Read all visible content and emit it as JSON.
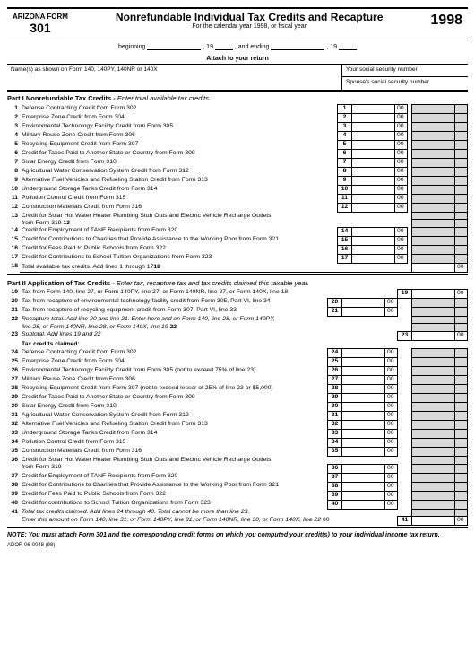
{
  "header": {
    "state": "ARIZONA FORM",
    "form_number": "301",
    "title": "Nonrefundable Individual Tax Credits and Recapture",
    "subtitle": "For the calendar year 1998, or fiscal year",
    "year": "1998",
    "beginning": "beginning",
    "ending": ", and ending",
    "comma19a": ", 19",
    "comma19b": ", 19",
    "attach": "Attach to your return"
  },
  "name_block": {
    "names_label": "Name(s) as shown on Form 140, 140PY, 140NR or 140X",
    "ssn_label": "Your social security number",
    "spouse_ssn_label": "Spouse's social security number"
  },
  "part1": {
    "heading_b": "Part I   Nonrefundable Tax Credits -",
    "heading_i": "Enter total available tax credits.",
    "lines": [
      {
        "n": "1",
        "d": "Defense Contracting Credit from Form 302",
        "b": "1"
      },
      {
        "n": "2",
        "d": "Enterprise Zone Credit from Form 304",
        "b": "2"
      },
      {
        "n": "3",
        "d": "Environmental Technology Facility Credit from Form 305",
        "b": "3"
      },
      {
        "n": "4",
        "d": "Military Reuse Zone Credit from Form 306",
        "b": "4"
      },
      {
        "n": "5",
        "d": "Recycling Equipment Credit from Form 307",
        "b": "5"
      },
      {
        "n": "6",
        "d": "Credit for Taxes Paid to Another State or Country from Form 309",
        "b": "6"
      },
      {
        "n": "7",
        "d": "Solar Energy Credit from Form 310",
        "b": "7"
      },
      {
        "n": "8",
        "d": "Agricultural Water Conservation System Credit from Form 312",
        "b": "8"
      },
      {
        "n": "9",
        "d": "Alternative Fuel Vehicles and Refueling Station Credit from Form 313",
        "b": "9"
      },
      {
        "n": "10",
        "d": "Underground Storage Tanks Credit from Form 314",
        "b": "10"
      },
      {
        "n": "11",
        "d": "Pollution Control Credit from Form 315",
        "b": "11"
      },
      {
        "n": "12",
        "d": "Construction Materials Credit from Form 316",
        "b": "12"
      }
    ],
    "line13a": {
      "n": "13",
      "d": "Credit for Solar Hot Water Heater Plumbing Stub Outs and Electric Vehicle Recharge Outlets"
    },
    "line13b": {
      "d": "from Form 319",
      "t": "13"
    },
    "lines2": [
      {
        "n": "14",
        "d": "Credit for Employment of TANF Recipients from Form 320",
        "b": "14"
      },
      {
        "n": "15",
        "d": "Credit for Contributions to Charities that Provide Assistance to the Working Poor from Form 321",
        "b": "15"
      },
      {
        "n": "16",
        "d": "Credit for Fees Paid to Public Schools from Form 322",
        "b": "16"
      },
      {
        "n": "17",
        "d": "Credit for Contributions to School Tuition Organizations from Form 323",
        "b": "17"
      }
    ],
    "line18": {
      "n": "18",
      "d": "Total available tax credits. Add lines 1 through 17",
      "t": "18"
    }
  },
  "part2": {
    "heading_b": "Part II   Application of Tax Credits -",
    "heading_i": "Enter tax, recapture tax and tax credits claimed this taxable year.",
    "line19": {
      "n": "19",
      "d": "Tax from Form 140, line 27, or Form 140PY, line 27, or Form 140NR, line 27, or Form 140X, line 18",
      "b": "19"
    },
    "line20": {
      "n": "20",
      "d": "Tax from recapture of environmental technology facility credit from Form 305, Part VI, line 34",
      "b": "20"
    },
    "line21": {
      "n": "21",
      "d": "Tax from recapture of recycling equipment credit from Form 307, Part VI, line 33",
      "b": "21"
    },
    "line22a": {
      "n": "22",
      "d": "Recapture total. Add line 20 and line 21. Enter here and on Form 140, line 28, or Form 140PY,"
    },
    "line22b": {
      "d": "line 28, or Form 140NR, line 28, or Form 140X, line 19",
      "t": "22"
    },
    "line23": {
      "n": "23",
      "d": "Subtotal. Add lines 19 and 22",
      "b": "23"
    },
    "claimed_hdr": "Tax credits claimed:",
    "lines3": [
      {
        "n": "24",
        "d": "Defense Contracting Credit from Form 302",
        "b": "24"
      },
      {
        "n": "25",
        "d": "Enterprise Zone Credit from Form 304",
        "b": "25"
      },
      {
        "n": "26",
        "d": "Environmental Technology Facility Credit from Form 305 (not to exceed 75% of line 23)",
        "b": "26"
      },
      {
        "n": "27",
        "d": "Military Reuse Zone Credit from Form 306",
        "b": "27"
      },
      {
        "n": "28",
        "d": "Recycling Equipment Credit from Form 307 (not to exceed lesser of 25% of line 23 or $5,000)",
        "b": "28"
      },
      {
        "n": "29",
        "d": "Credit for Taxes Paid to Another State or Country from Form 309",
        "b": "29"
      },
      {
        "n": "30",
        "d": "Solar Energy Credit from Form 310",
        "b": "30"
      },
      {
        "n": "31",
        "d": "Agricultural Water Conservation System Credit from Form 312",
        "b": "31"
      },
      {
        "n": "32",
        "d": "Alternative Fuel Vehicles and Refueling Station Credit from Form 313",
        "b": "32"
      },
      {
        "n": "33",
        "d": "Underground Storage Tanks Credit from Form 314",
        "b": "33"
      },
      {
        "n": "34",
        "d": "Pollution Control Credit from Form 315",
        "b": "34"
      },
      {
        "n": "35",
        "d": "Construction Materials Credit from Form 316",
        "b": "35"
      }
    ],
    "line36a": {
      "n": "36",
      "d": "Credit for Solar Hot Water Heater Plumbing Stub Outs and Electric Vehicle Recharge Outlets"
    },
    "line36b": {
      "d": "from Form 319",
      "b": "36"
    },
    "lines4": [
      {
        "n": "37",
        "d": "Credit for Employment of TANF Recipients from Form 320",
        "b": "37"
      },
      {
        "n": "38",
        "d": "Credit for Contributions to Charities that Provide Assistance to the Working Poor from Form 321",
        "b": "38"
      },
      {
        "n": "39",
        "d": "Credit for Fees Paid to Public Schools from Form 322",
        "b": "39"
      },
      {
        "n": "40",
        "d": "Credit for contributions to School Tuition Organizations from Form 323",
        "b": "40"
      }
    ],
    "line41a": {
      "n": "41",
      "d": "Total tax credits claimed. Add lines 24 through 40. Total cannot be more than line 23."
    },
    "line41b": {
      "d": "Enter this amount on Form 140, line 31, or Form 140PY, line 31, or Form 140NR, line 30, or Form 140X, line 22",
      "t": "00",
      "b": "41"
    }
  },
  "note": "NOTE: You must attach Form 301 and the corresponding credit forms on which you computed your credit(s) to your individual income tax return.",
  "footer": "ADOR 06-0048 (98)",
  "c00": "00"
}
